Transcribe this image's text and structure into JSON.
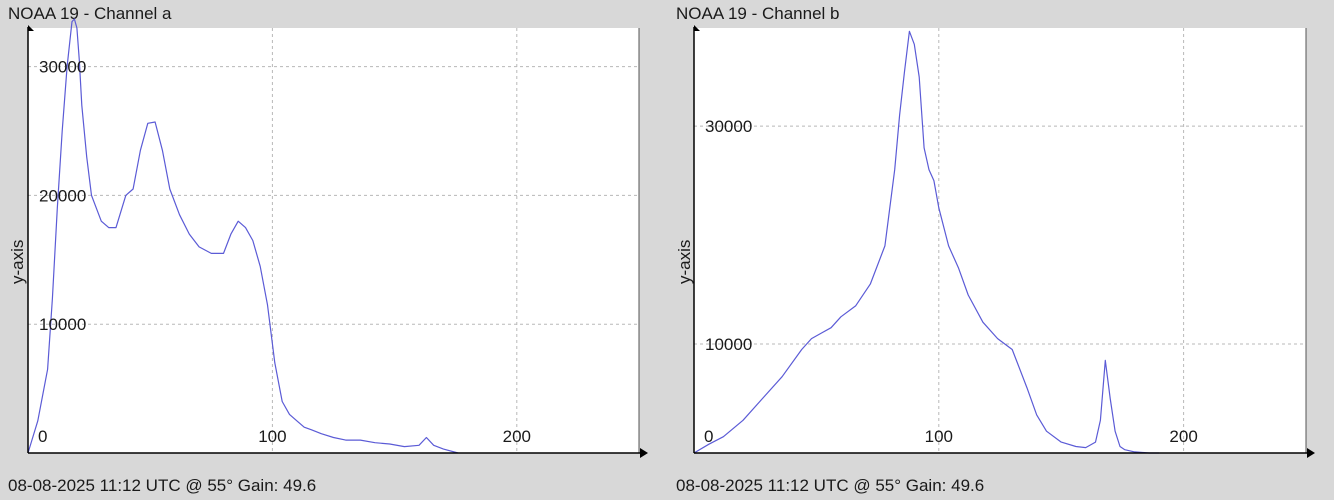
{
  "chart_data": [
    {
      "type": "line",
      "title": "NOAA 19 - Channel a",
      "footer": "08-08-2025 11:12 UTC @ 55° Gain: 49.6",
      "ylabel": "y-axis",
      "xlim": [
        0,
        250
      ],
      "ylim": [
        0,
        33000
      ],
      "xticks": [
        0,
        100,
        200
      ],
      "yticks": [
        10000,
        20000,
        30000
      ],
      "line_color": "#5b5bd6",
      "grid": true,
      "series": [
        {
          "x": [
            0,
            4,
            8,
            10,
            12,
            14,
            16,
            18,
            19,
            20,
            21,
            22,
            24,
            26,
            28,
            30,
            33,
            36,
            40,
            43,
            46,
            49,
            52,
            55,
            58,
            62,
            66,
            70,
            75,
            80,
            83,
            86,
            89,
            92,
            95,
            98,
            101,
            104,
            107,
            110,
            113,
            116,
            120,
            125,
            130,
            136,
            142,
            148,
            154,
            160,
            163,
            166,
            170,
            176
          ],
          "y": [
            0,
            2500,
            6500,
            12000,
            19000,
            25000,
            30000,
            33500,
            33700,
            33000,
            30500,
            27000,
            23000,
            20000,
            19000,
            18000,
            17500,
            17500,
            20000,
            20500,
            23500,
            25600,
            25700,
            23500,
            20500,
            18500,
            17000,
            16000,
            15500,
            15500,
            17000,
            18000,
            17500,
            16500,
            14500,
            11500,
            7000,
            4000,
            3000,
            2500,
            2000,
            1800,
            1500,
            1200,
            1000,
            1000,
            800,
            700,
            500,
            600,
            1200,
            600,
            300,
            0
          ]
        }
      ]
    },
    {
      "type": "line",
      "title": "NOAA 19 - Channel b",
      "footer": "08-08-2025 11:12 UTC @ 55° Gain: 49.6",
      "ylabel": "y-axis",
      "xlim": [
        0,
        250
      ],
      "ylim": [
        0,
        39000
      ],
      "xticks": [
        0,
        100,
        200
      ],
      "yticks": [
        10000,
        30000
      ],
      "line_color": "#5b5bd6",
      "grid": true,
      "series": [
        {
          "x": [
            0,
            6,
            12,
            20,
            28,
            36,
            44,
            48,
            52,
            56,
            60,
            66,
            72,
            78,
            82,
            84,
            86,
            88,
            90,
            92,
            94,
            96,
            98,
            100,
            104,
            108,
            112,
            118,
            124,
            130,
            136,
            140,
            144,
            150,
            156,
            160,
            164,
            166,
            168,
            170,
            172,
            174,
            176,
            180,
            186,
            190
          ],
          "y": [
            0,
            800,
            1500,
            3000,
            5000,
            7000,
            9500,
            10500,
            11000,
            11500,
            12500,
            13500,
            15500,
            19000,
            26000,
            31000,
            35000,
            38700,
            37500,
            34500,
            28000,
            26000,
            25000,
            22500,
            19000,
            17000,
            14500,
            12000,
            10500,
            9500,
            6000,
            3500,
            2000,
            1000,
            600,
            500,
            1000,
            3000,
            8500,
            5000,
            2000,
            600,
            300,
            100,
            0,
            0
          ]
        }
      ]
    }
  ]
}
